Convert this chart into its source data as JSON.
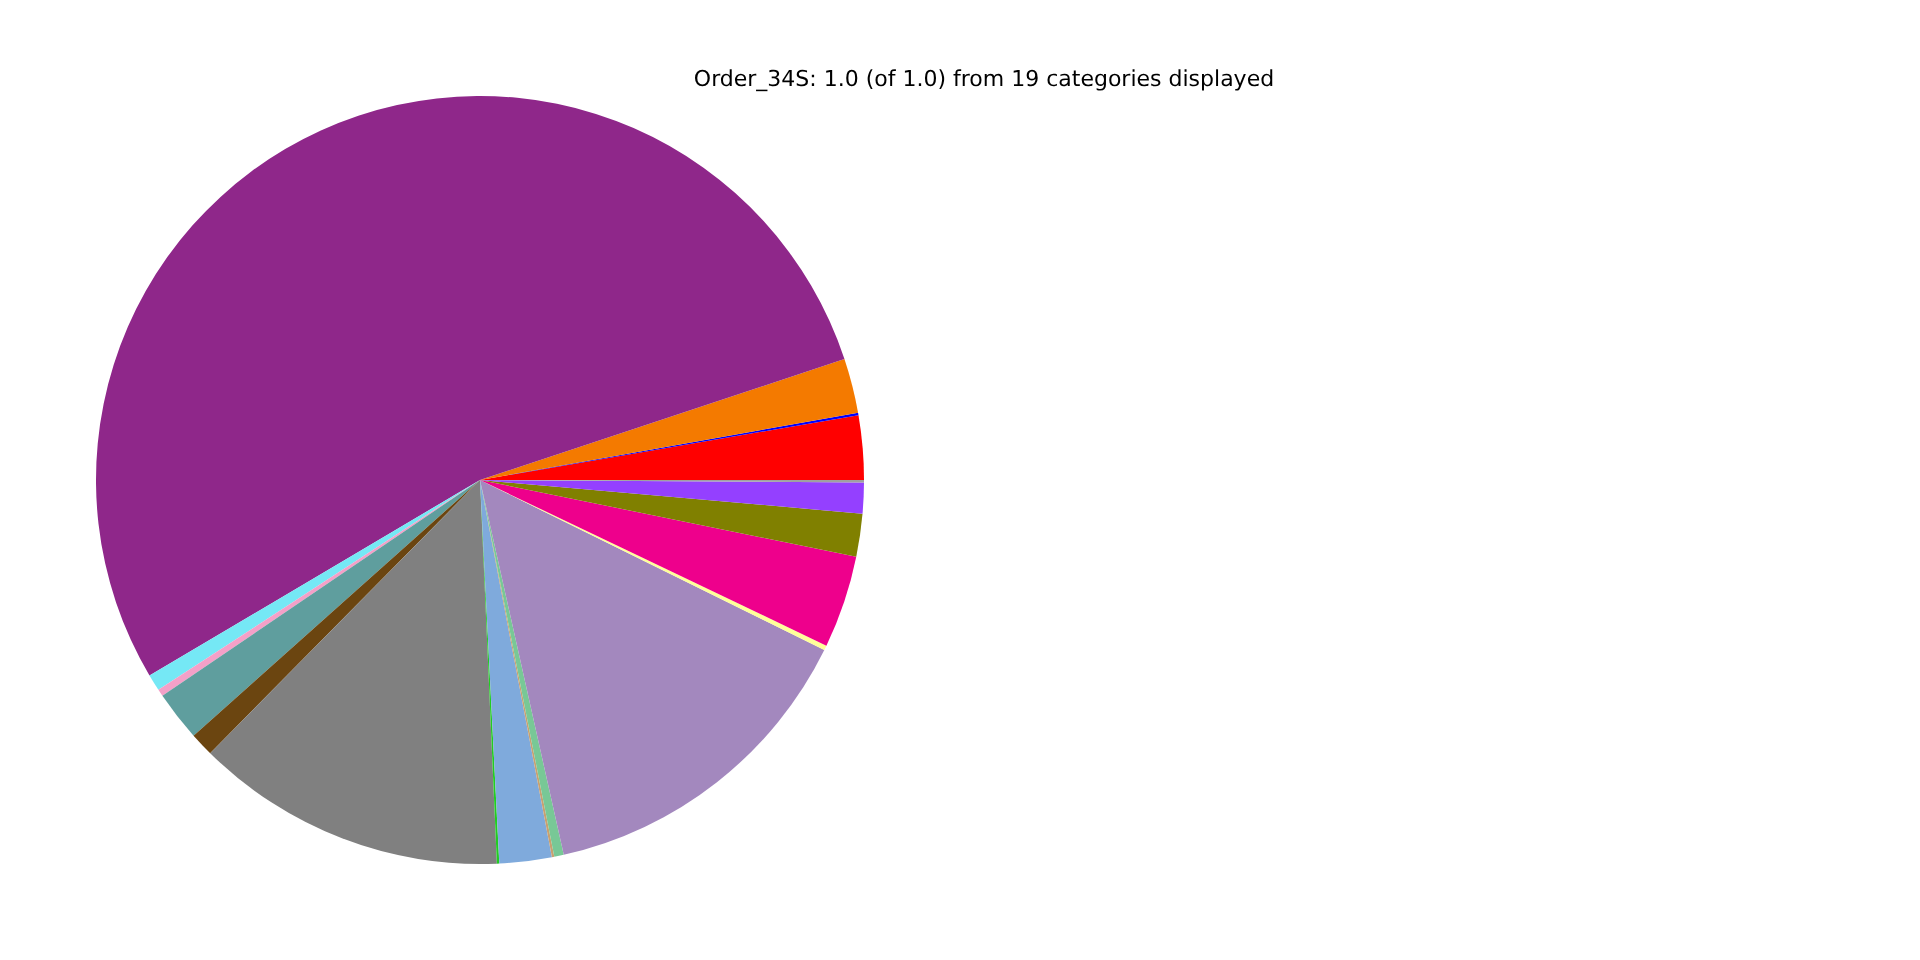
{
  "chart_data": {
    "type": "pie",
    "title": "Order_34S: 1.0 (of 1.0) from 19 categories displayed",
    "categories": [
      null,
      null,
      null,
      null,
      null,
      null,
      null,
      null,
      null,
      null,
      null,
      null,
      null,
      null,
      null,
      null,
      null,
      null,
      null
    ],
    "values": [
      2.7,
      0.1,
      2.3,
      53.4,
      0.7,
      0.3,
      2.1,
      1.0,
      13.1,
      0.1,
      2.2,
      0.1,
      0.4,
      14.2,
      0.2,
      3.9,
      1.8,
      1.3,
      0.1
    ],
    "colors": [
      "#ff0000",
      "#0000ff",
      "#f47a00",
      "#8f278a",
      "#75e8f5",
      "#f4a0c8",
      "#5f9e9e",
      "#6b4510",
      "#808080",
      "#22cc22",
      "#7faadc",
      "#c8a070",
      "#78c896",
      "#a388be",
      "#ffff99",
      "#ee008c",
      "#808000",
      "#9440ff",
      "#a0a0a0"
    ],
    "legend": false
  }
}
